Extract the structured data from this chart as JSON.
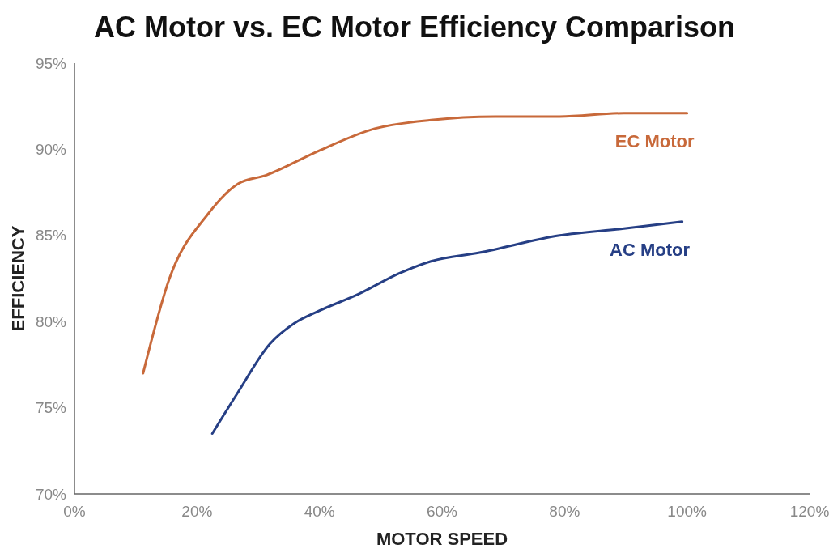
{
  "chart_data": {
    "type": "line",
    "title": "AC Motor vs. EC Motor Efficiency Comparison",
    "xlabel": "MOTOR SPEED",
    "ylabel": "EFFICIENCY",
    "xlim": [
      0,
      120
    ],
    "ylim": [
      70,
      95
    ],
    "xticks": [
      {
        "value": 0,
        "label": "0%"
      },
      {
        "value": 20,
        "label": "20%"
      },
      {
        "value": 40,
        "label": "40%"
      },
      {
        "value": 60,
        "label": "60%"
      },
      {
        "value": 80,
        "label": "80%"
      },
      {
        "value": 100,
        "label": "100%"
      },
      {
        "value": 120,
        "label": "120%"
      }
    ],
    "yticks": [
      {
        "value": 70,
        "label": "70%"
      },
      {
        "value": 75,
        "label": "75%"
      },
      {
        "value": 80,
        "label": "80%"
      },
      {
        "value": 85,
        "label": "85%"
      },
      {
        "value": 90,
        "label": "90%"
      },
      {
        "value": 95,
        "label": "95%"
      }
    ],
    "grid": false,
    "marker": "none",
    "line_style": "solid",
    "series": [
      {
        "name": "EC Motor",
        "color": "#c8693a",
        "x": [
          11.2,
          15.5,
          21.7,
          26.7,
          31.3,
          39.8,
          49,
          58.2,
          68.7,
          79.2,
          89.7,
          100
        ],
        "values": [
          77.0,
          82.5,
          86.2,
          88.0,
          88.5,
          89.9,
          91.2,
          91.7,
          91.9,
          91.9,
          92.1,
          92.1
        ]
      },
      {
        "name": "AC Motor",
        "color": "#263f85",
        "x": [
          22.5,
          26.7,
          31.9,
          35.9,
          39.8,
          46.4,
          53,
          58.2,
          66.1,
          79.2,
          89.7,
          99.2
        ],
        "values": [
          73.5,
          75.9,
          78.7,
          79.9,
          80.6,
          81.6,
          82.8,
          83.5,
          84.0,
          85.0,
          85.4,
          85.8
        ]
      }
    ]
  }
}
